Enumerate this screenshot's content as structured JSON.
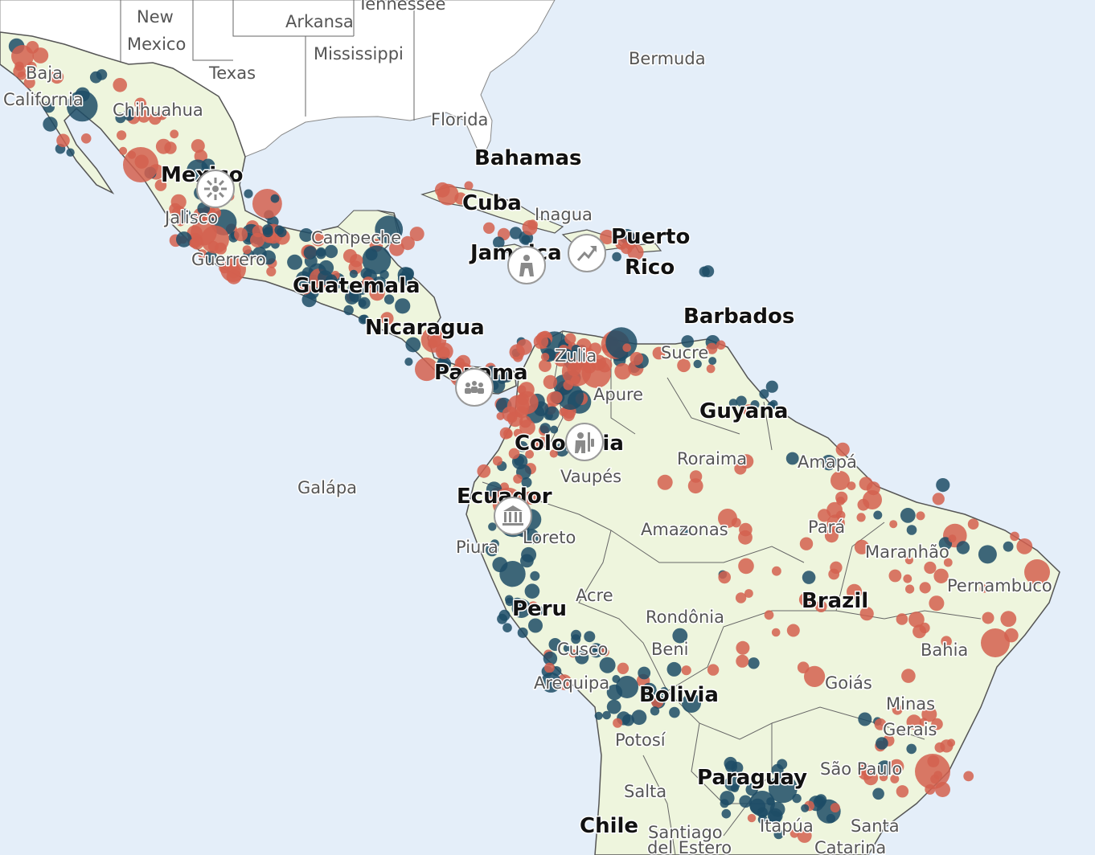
{
  "colors": {
    "ocean": "#e4eef9",
    "land_latam": "#eef5dd",
    "land_other": "#ffffff",
    "border": "#555555",
    "event_red": "#d4604f",
    "event_blue": "#1d4c66"
  },
  "labels": {
    "countries": {
      "mexico": "Mexico",
      "bahamas": "Bahamas",
      "cuba": "Cuba",
      "jamaica": "Jamaica",
      "puerto_rico_line1": "Puerto",
      "puerto_rico_line2": "Rico",
      "guatemala": "Guatemala",
      "nicaragua": "Nicaragua",
      "barbados": "Barbados",
      "panama": "Panama",
      "guyana": "Guyana",
      "colombia": "Colombia",
      "ecuador": "Ecuador",
      "peru": "Peru",
      "brazil": "Brazil",
      "bolivia": "Bolivia",
      "paraguay": "Paraguay",
      "chile": "Chile"
    },
    "regions": {
      "new_mexico_1": "New",
      "new_mexico_2": "Mexico",
      "arkansas": "Arkansa",
      "tennessee": "Tennessee",
      "mississippi": "Mississippi",
      "texas": "Texas",
      "baja_1": "Baja",
      "baja_2": "California",
      "chihuahua": "Chihuahua",
      "florida": "Florida",
      "bermuda": "Bermuda",
      "inagua": "Inagua",
      "campeche": "Campeche",
      "jalisco": "Jalisco",
      "guerrero": "Guerrero",
      "zulia": "Zulia",
      "sucre": "Sucre",
      "apure": "Apure",
      "roraima": "Roraima",
      "amapa": "Amapá",
      "vaupes": "Vaupés",
      "galapagos": "Galápa",
      "amazonas": "Amazonas",
      "para": "Pará",
      "maranhao": "Maranhão",
      "piura": "Piura",
      "loreto": "Loreto",
      "pernambuco": "Pernambuco",
      "acre": "Acre",
      "rondonia": "Rondônia",
      "cusco": "Cusco",
      "beni": "Beni",
      "bahia": "Bahia",
      "arequipa": "Arequipa",
      "goias": "Goiás",
      "minas_1": "Minas",
      "minas_2": "Gerais",
      "potosi": "Potosí",
      "sao_paulo": "São Paulo",
      "salta": "Salta",
      "santiago": "Santiago",
      "itapua": "Itapúa",
      "santa_catarina_1": "Santa",
      "santa_catarina_2": "Catarina",
      "estero": "del Estero"
    }
  },
  "category_markers": [
    {
      "name": "sun-icon"
    },
    {
      "name": "person-icon"
    },
    {
      "name": "trend-up-icon"
    },
    {
      "name": "crowd-icon"
    },
    {
      "name": "fist-icon"
    },
    {
      "name": "government-building-icon"
    }
  ]
}
